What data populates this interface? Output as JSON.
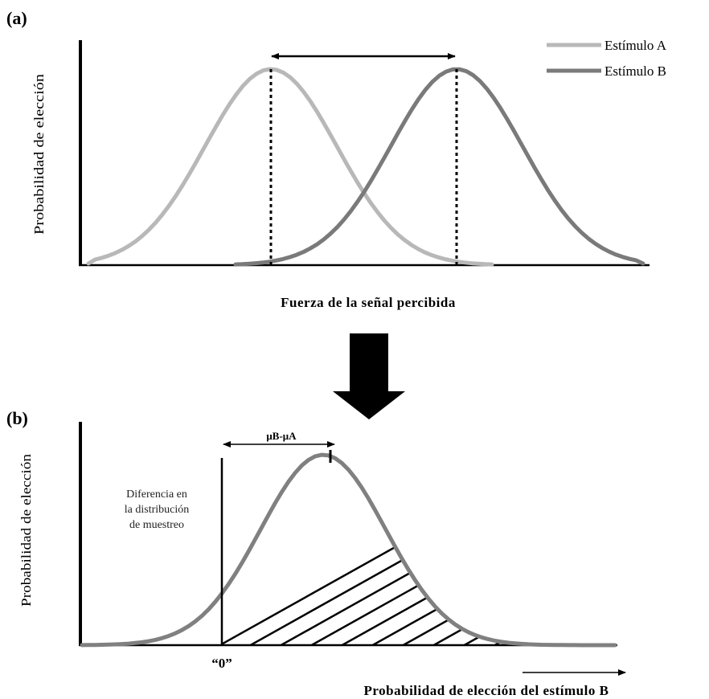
{
  "panel_a": {
    "label": "(a)",
    "y_axis_label": "Probabilidad de elección",
    "x_axis_label": "Fuerza de la señal percibida",
    "legend": [
      {
        "name": "Estímulo A",
        "color": "#b8b8b8"
      },
      {
        "name": "Estímulo B",
        "color": "#7a7a7a"
      }
    ]
  },
  "panel_b": {
    "label": "(b)",
    "y_axis_label": "Probabilidad de elección",
    "x_axis_label": "Probabilidad de elección del estímulo B",
    "difference_label": "μB-μA",
    "zero_label": "“0”",
    "note_lines": [
      "Diferencia en",
      "la distribución",
      "de muestreo"
    ]
  },
  "colors": {
    "stimulus_a": "#b8b8b8",
    "stimulus_b": "#7a7a7a",
    "distribution": "#808080",
    "arrow": "#000000"
  },
  "icons": {
    "transition": "down-arrow-icon"
  }
}
